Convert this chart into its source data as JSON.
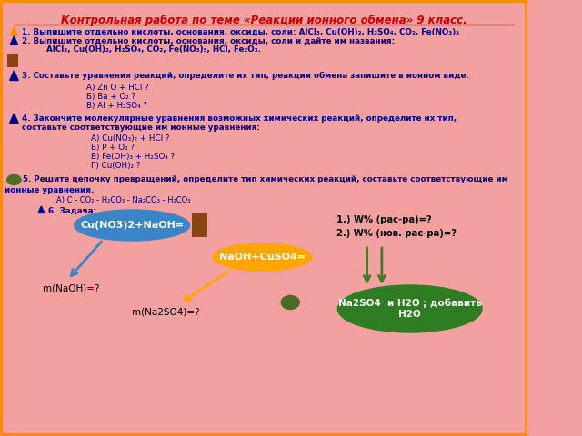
{
  "title": "Контрольная работа по теме «Реакции ионного обмена» 9 класс.",
  "bg_color": "#F2A0A0",
  "border_color": "#FF8C00",
  "title_color": "#CC0000",
  "text_color": "#00008B",
  "q1": "1. Выпишите отдельно кислоты, основания, оксиды, соли: AlCl₃, Cu(OH)₂, H₂SO₄, CO₂, Fe(NO₃)₃",
  "q2": "2. Выпишите отдельно кислоты, основания, оксиды, соли и дайте им названия:",
  "q2b": "         AlCl₃, Cu(OH)₂, H₂SO₄, CO₂, Fe(NO₃)₃, HCl, Fe₂O₃.",
  "q3": "3. Составьте уравнения реакций, определите их тип, реакции обмена запишите в ионном виде:",
  "q3a": "А) Zn O + HCl ?",
  "q3b": "Б) Ba + O₂ ?",
  "q3c": "В) Al + H₂SO₄ ?",
  "q4": "4. Закончите молекулярные уравнения возможных химических реакций, определите их тип,\nсоставьте соответствующие им ионные уравнения:",
  "q4a": "А) Cu(NO₃)₂ + HCl ?",
  "q4b": "Б) P + O₂ ?",
  "q4c": "В) Fe(OH)₃ + H₂SO₄ ?",
  "q4d": "Г) Cu(OH)₂ ?",
  "q5": "5. Решите цепочку превращений, определите тип химических реакций, составьте соответствующие им",
  "q5b": "ионные уравнения.",
  "q5a": "А) C - CO₂ - H₂CO₃ - Na₂CO₃ - H₂CO₃",
  "q6": "6. Задача:",
  "ellipse1_text": "Cu(NO3)2+NaOH=",
  "ellipse1_color": "#3A85C8",
  "ellipse2_text": "NaOH+CuSO4=",
  "ellipse2_color": "#FFA500",
  "ellipse3_text": "Na2SO4  и H2O ; добавить\nH2O",
  "ellipse3_color": "#2E7D22",
  "label_mnaoh": "m(NaOH)=?",
  "label_mna2so4": "m(Na2SO4)=?",
  "label_w1": "1.) W% (рас-ра)=?",
  "label_w2": "2.) W% (нов. рас-ра)=?",
  "rect_color": "#8B4513",
  "small_ellipse_color": "#4A6B22",
  "triangle_color_orange": "#FF8C00",
  "triangle_color_blue": "#00008B",
  "oval_color": "#4A7022",
  "arrow_blue": "#3A85C8",
  "arrow_orange": "#FFA500",
  "arrow_green": "#3A7D22"
}
